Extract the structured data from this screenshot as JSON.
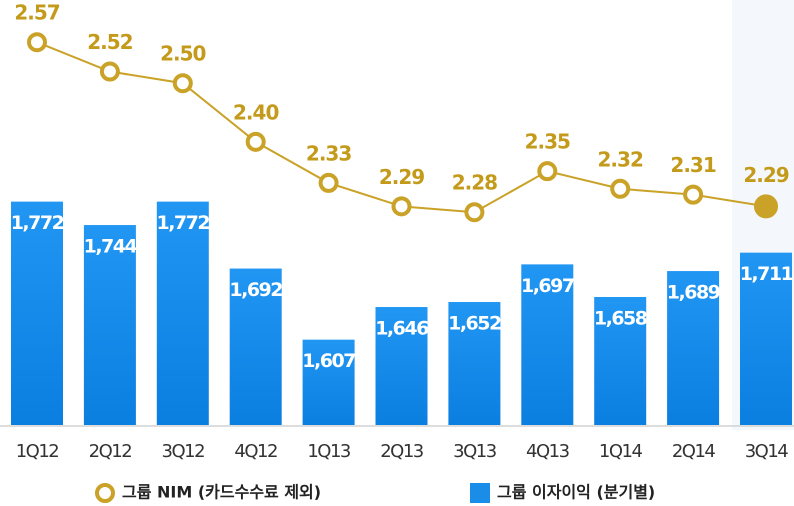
{
  "chart_data": {
    "type": "bar_line",
    "categories": [
      "1Q12",
      "2Q12",
      "3Q12",
      "4Q12",
      "1Q13",
      "2Q13",
      "3Q13",
      "4Q13",
      "1Q14",
      "2Q14",
      "3Q14"
    ],
    "series": [
      {
        "name": "그룹 NIM (카드수수료 제외)",
        "type": "line",
        "axis": "y2",
        "color": "#c9a227",
        "values": [
          2.57,
          2.52,
          2.5,
          2.4,
          2.33,
          2.29,
          2.28,
          2.35,
          2.32,
          2.31,
          2.29
        ],
        "value_labels": [
          "2.57",
          "2.52",
          "2.50",
          "2.40",
          "2.33",
          "2.29",
          "2.28",
          "2.35",
          "2.32",
          "2.31",
          "2.29"
        ]
      },
      {
        "name": "그룹 이자이익 (분기별)",
        "type": "bar",
        "color": "#1a8de9",
        "values": [
          1772,
          1744,
          1772,
          1692,
          1607,
          1646,
          1652,
          1697,
          1658,
          1689,
          1711
        ],
        "value_labels": [
          "1,772",
          "1,744",
          "1,772",
          "1,692",
          "1,607",
          "1,646",
          "1,652",
          "1,697",
          "1,658",
          "1,689",
          "1,711"
        ]
      }
    ],
    "ylim": [
      1505,
      2013
    ],
    "y2lim": [
      1.917,
      2.642
    ],
    "legend": "bottom"
  }
}
